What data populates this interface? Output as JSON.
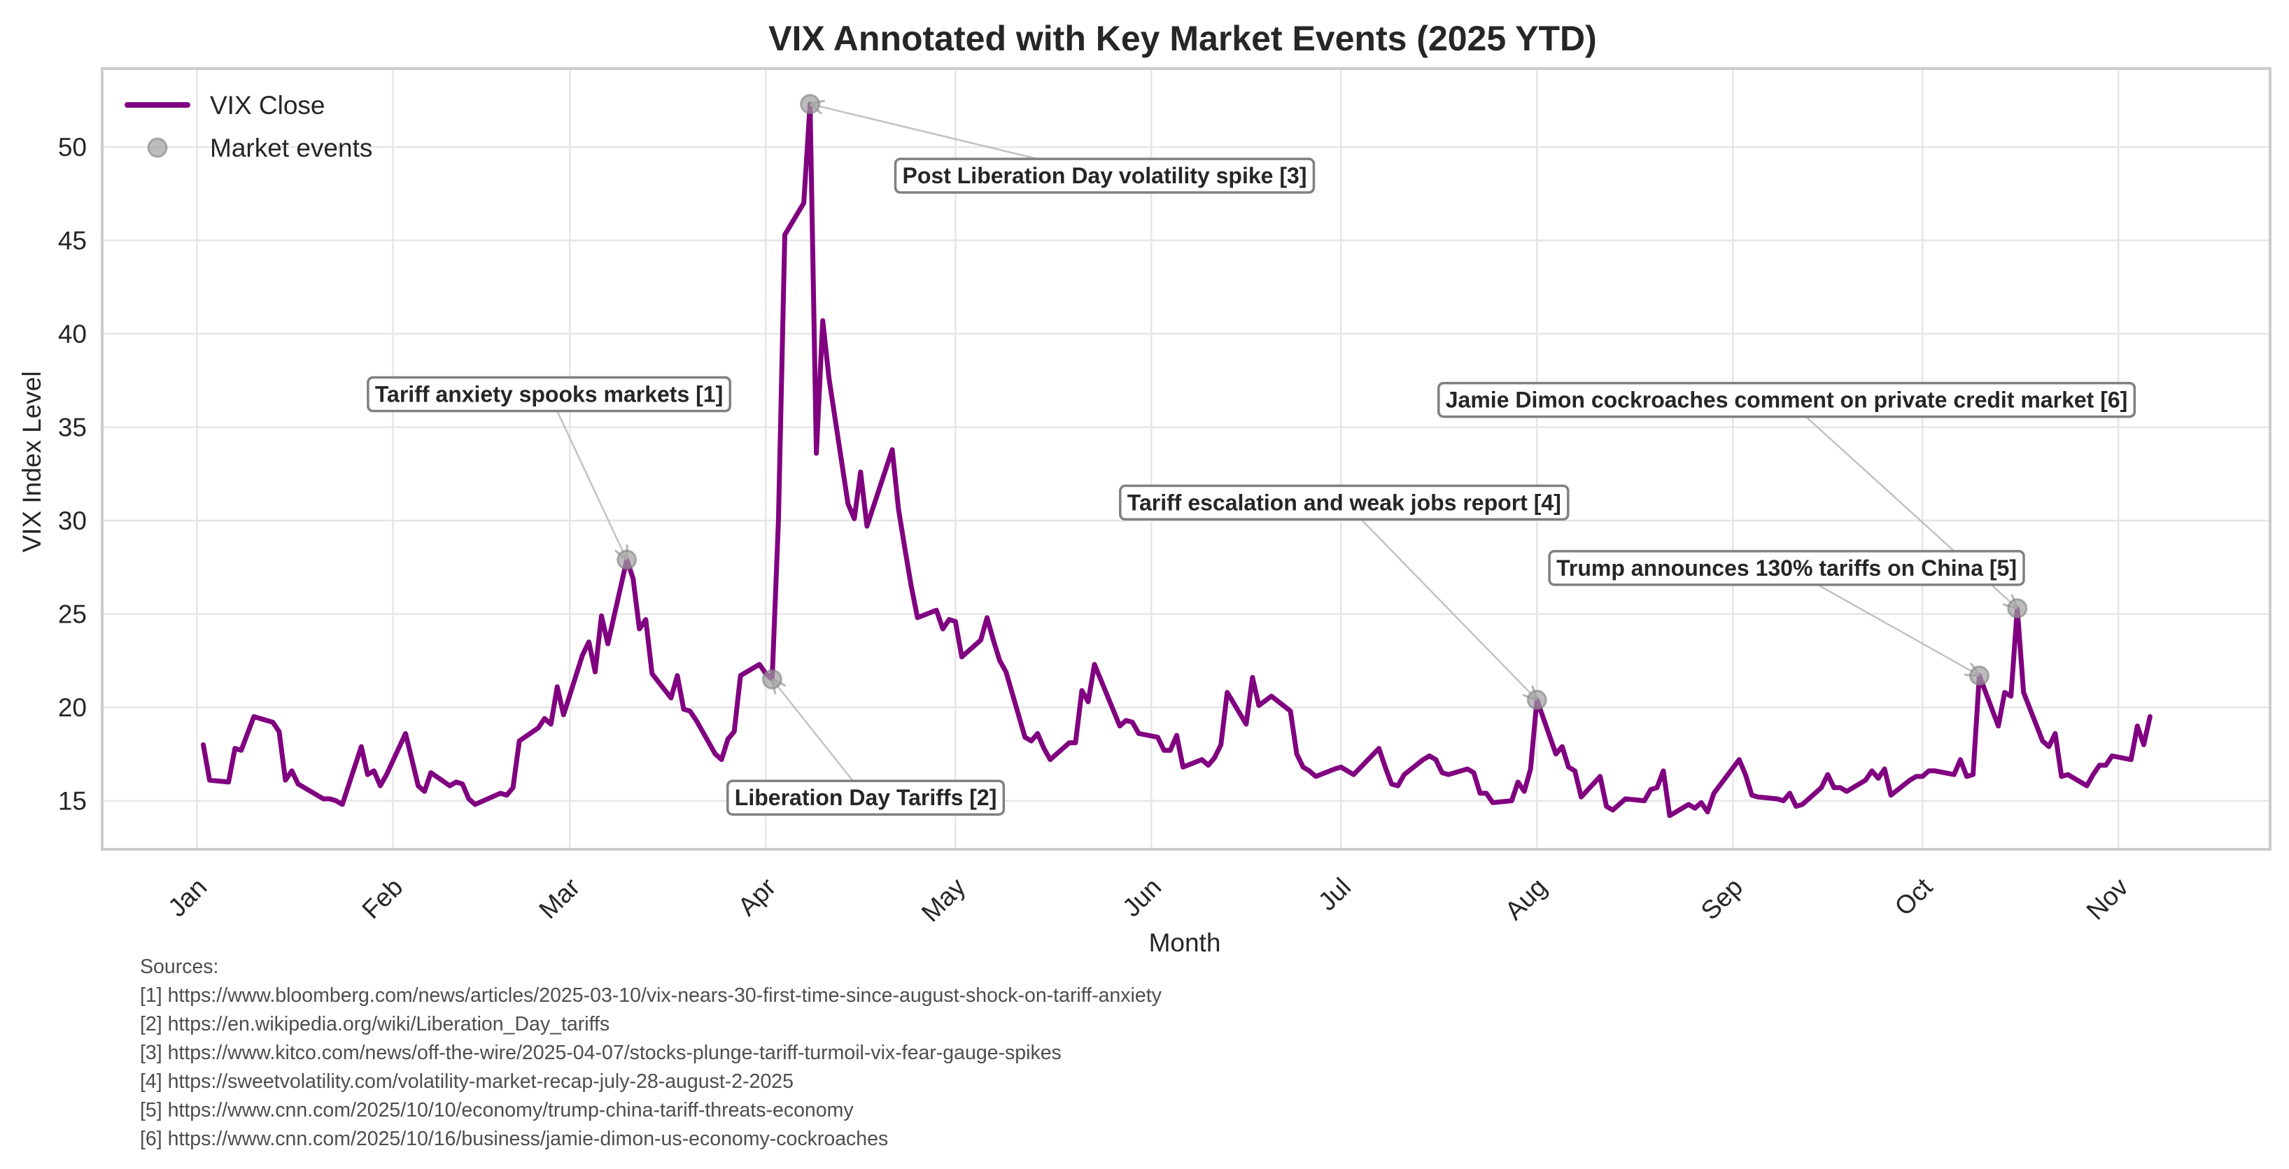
{
  "chart_data": {
    "type": "line",
    "title": "VIX Annotated with Key Market Events (2025 YTD)",
    "xlabel": "Month",
    "ylabel": "VIX Index Level",
    "ylim": [
      12.4,
      54.2
    ],
    "xlim": [
      "2024-12-17",
      "2025-11-25"
    ],
    "grid": true,
    "legend_position": "top-left",
    "legend": [
      {
        "label": "VIX Close",
        "kind": "line",
        "color": "#800080"
      },
      {
        "label": "Market events",
        "kind": "marker",
        "color": "#a0a0a0"
      }
    ],
    "x_ticks": [
      {
        "date": "2025-01-01",
        "label": "Jan"
      },
      {
        "date": "2025-02-01",
        "label": "Feb"
      },
      {
        "date": "2025-03-01",
        "label": "Mar"
      },
      {
        "date": "2025-04-01",
        "label": "Apr"
      },
      {
        "date": "2025-05-01",
        "label": "May"
      },
      {
        "date": "2025-06-01",
        "label": "Jun"
      },
      {
        "date": "2025-07-01",
        "label": "Jul"
      },
      {
        "date": "2025-08-01",
        "label": "Aug"
      },
      {
        "date": "2025-09-01",
        "label": "Sep"
      },
      {
        "date": "2025-10-01",
        "label": "Oct"
      },
      {
        "date": "2025-11-01",
        "label": "Nov"
      }
    ],
    "y_ticks": [
      15,
      20,
      25,
      30,
      35,
      40,
      45,
      50
    ],
    "series": [
      {
        "name": "VIX Close",
        "color": "#800080",
        "x": [
          "2025-01-02",
          "2025-01-03",
          "2025-01-06",
          "2025-01-07",
          "2025-01-08",
          "2025-01-10",
          "2025-01-13",
          "2025-01-14",
          "2025-01-15",
          "2025-01-16",
          "2025-01-17",
          "2025-01-21",
          "2025-01-22",
          "2025-01-23",
          "2025-01-24",
          "2025-01-27",
          "2025-01-28",
          "2025-01-29",
          "2025-01-30",
          "2025-01-31",
          "2025-02-03",
          "2025-02-04",
          "2025-02-05",
          "2025-02-06",
          "2025-02-07",
          "2025-02-10",
          "2025-02-11",
          "2025-02-12",
          "2025-02-13",
          "2025-02-14",
          "2025-02-18",
          "2025-02-19",
          "2025-02-20",
          "2025-02-21",
          "2025-02-24",
          "2025-02-25",
          "2025-02-26",
          "2025-02-27",
          "2025-02-28",
          "2025-03-03",
          "2025-03-04",
          "2025-03-05",
          "2025-03-06",
          "2025-03-07",
          "2025-03-10",
          "2025-03-11",
          "2025-03-12",
          "2025-03-13",
          "2025-03-14",
          "2025-03-17",
          "2025-03-18",
          "2025-03-19",
          "2025-03-20",
          "2025-03-21",
          "2025-03-24",
          "2025-03-25",
          "2025-03-26",
          "2025-03-27",
          "2025-03-28",
          "2025-03-31",
          "2025-04-01",
          "2025-04-02",
          "2025-04-03",
          "2025-04-04",
          "2025-04-07",
          "2025-04-08",
          "2025-04-09",
          "2025-04-10",
          "2025-04-11",
          "2025-04-14",
          "2025-04-15",
          "2025-04-16",
          "2025-04-17",
          "2025-04-21",
          "2025-04-22",
          "2025-04-23",
          "2025-04-24",
          "2025-04-25",
          "2025-04-28",
          "2025-04-29",
          "2025-04-30",
          "2025-05-01",
          "2025-05-02",
          "2025-05-05",
          "2025-05-06",
          "2025-05-07",
          "2025-05-08",
          "2025-05-09",
          "2025-05-12",
          "2025-05-13",
          "2025-05-14",
          "2025-05-15",
          "2025-05-16",
          "2025-05-19",
          "2025-05-20",
          "2025-05-21",
          "2025-05-22",
          "2025-05-23",
          "2025-05-27",
          "2025-05-28",
          "2025-05-29",
          "2025-05-30",
          "2025-06-02",
          "2025-06-03",
          "2025-06-04",
          "2025-06-05",
          "2025-06-06",
          "2025-06-09",
          "2025-06-10",
          "2025-06-11",
          "2025-06-12",
          "2025-06-13",
          "2025-06-16",
          "2025-06-17",
          "2025-06-18",
          "2025-06-20",
          "2025-06-23",
          "2025-06-24",
          "2025-06-25",
          "2025-06-26",
          "2025-06-27",
          "2025-06-30",
          "2025-07-01",
          "2025-07-02",
          "2025-07-03",
          "2025-07-07",
          "2025-07-08",
          "2025-07-09",
          "2025-07-10",
          "2025-07-11",
          "2025-07-14",
          "2025-07-15",
          "2025-07-16",
          "2025-07-17",
          "2025-07-18",
          "2025-07-21",
          "2025-07-22",
          "2025-07-23",
          "2025-07-24",
          "2025-07-25",
          "2025-07-28",
          "2025-07-29",
          "2025-07-30",
          "2025-07-31",
          "2025-08-01",
          "2025-08-04",
          "2025-08-05",
          "2025-08-06",
          "2025-08-07",
          "2025-08-08",
          "2025-08-11",
          "2025-08-12",
          "2025-08-13",
          "2025-08-14",
          "2025-08-15",
          "2025-08-18",
          "2025-08-19",
          "2025-08-20",
          "2025-08-21",
          "2025-08-22",
          "2025-08-25",
          "2025-08-26",
          "2025-08-27",
          "2025-08-28",
          "2025-08-29",
          "2025-09-02",
          "2025-09-03",
          "2025-09-04",
          "2025-09-05",
          "2025-09-08",
          "2025-09-09",
          "2025-09-10",
          "2025-09-11",
          "2025-09-12",
          "2025-09-15",
          "2025-09-16",
          "2025-09-17",
          "2025-09-18",
          "2025-09-19",
          "2025-09-22",
          "2025-09-23",
          "2025-09-24",
          "2025-09-25",
          "2025-09-26",
          "2025-09-29",
          "2025-09-30",
          "2025-10-01",
          "2025-10-02",
          "2025-10-03",
          "2025-10-06",
          "2025-10-07",
          "2025-10-08",
          "2025-10-09",
          "2025-10-10",
          "2025-10-13",
          "2025-10-14",
          "2025-10-15",
          "2025-10-16",
          "2025-10-17",
          "2025-10-20",
          "2025-10-21",
          "2025-10-22",
          "2025-10-23",
          "2025-10-24",
          "2025-10-27",
          "2025-10-28",
          "2025-10-29",
          "2025-10-30",
          "2025-10-31",
          "2025-11-03",
          "2025-11-04",
          "2025-11-05",
          "2025-11-06"
        ],
        "values": [
          18.0,
          16.1,
          16.0,
          17.8,
          17.7,
          19.5,
          19.2,
          18.7,
          16.1,
          16.6,
          15.9,
          15.1,
          15.1,
          15.0,
          14.8,
          17.9,
          16.4,
          16.6,
          15.8,
          16.4,
          18.6,
          17.2,
          15.8,
          15.5,
          16.5,
          15.8,
          16.0,
          15.9,
          15.1,
          14.8,
          15.4,
          15.3,
          15.7,
          18.2,
          18.9,
          19.4,
          19.1,
          21.1,
          19.6,
          22.8,
          23.5,
          21.9,
          24.9,
          23.4,
          27.9,
          26.9,
          24.2,
          24.7,
          21.8,
          20.5,
          21.7,
          19.9,
          19.8,
          19.3,
          17.5,
          17.2,
          18.3,
          18.7,
          21.7,
          22.3,
          21.8,
          21.5,
          30.0,
          45.3,
          47.0,
          52.3,
          33.6,
          40.7,
          37.6,
          30.9,
          30.1,
          32.6,
          29.7,
          33.8,
          30.6,
          28.5,
          26.5,
          24.8,
          25.2,
          24.2,
          24.7,
          24.6,
          22.7,
          23.6,
          24.8,
          23.6,
          22.5,
          21.9,
          18.4,
          18.2,
          18.6,
          17.8,
          17.2,
          18.1,
          18.1,
          20.9,
          20.3,
          22.3,
          19.0,
          19.3,
          19.2,
          18.6,
          18.4,
          17.7,
          17.7,
          18.5,
          16.8,
          17.2,
          16.9,
          17.3,
          18.0,
          20.8,
          19.1,
          21.6,
          20.1,
          20.6,
          19.8,
          17.5,
          16.8,
          16.6,
          16.3,
          16.7,
          16.8,
          16.6,
          16.4,
          17.8,
          16.8,
          15.9,
          15.8,
          16.4,
          17.2,
          17.4,
          17.2,
          16.5,
          16.4,
          16.7,
          16.5,
          15.4,
          15.4,
          14.9,
          15.0,
          16.0,
          15.5,
          16.7,
          20.4,
          17.5,
          17.9,
          16.8,
          16.6,
          15.2,
          16.3,
          14.7,
          14.5,
          14.8,
          15.1,
          15.0,
          15.6,
          15.7,
          16.6,
          14.2,
          14.8,
          14.6,
          14.9,
          14.4,
          15.4,
          17.2,
          16.4,
          15.3,
          15.2,
          15.1,
          15.0,
          15.4,
          14.7,
          14.8,
          15.7,
          16.4,
          15.7,
          15.7,
          15.5,
          16.1,
          16.6,
          16.2,
          16.7,
          15.3,
          16.1,
          16.3,
          16.3,
          16.6,
          16.6,
          16.4,
          17.2,
          16.3,
          16.4,
          21.7,
          19.0,
          20.8,
          20.6,
          25.3,
          20.8,
          18.2,
          17.9,
          18.6,
          16.3,
          16.4,
          15.8,
          16.4,
          16.9,
          16.9,
          17.4,
          17.2,
          19.0,
          18.0,
          19.5
        ]
      }
    ],
    "events": [
      {
        "id": 1,
        "date": "2025-03-10",
        "value": 27.9,
        "label": "Tariff anxiety spooks markets [1]"
      },
      {
        "id": 2,
        "date": "2025-04-02",
        "value": 21.5,
        "label": "Liberation Day Tariffs [2]"
      },
      {
        "id": 3,
        "date": "2025-04-08",
        "value": 52.3,
        "label": "Post Liberation Day volatility spike [3]"
      },
      {
        "id": 4,
        "date": "2025-08-01",
        "value": 20.4,
        "label": "Tariff escalation and weak jobs report [4]"
      },
      {
        "id": 5,
        "date": "2025-10-10",
        "value": 21.7,
        "label": "Trump announces 130% tariffs on China [5]"
      },
      {
        "id": 6,
        "date": "2025-10-16",
        "value": 25.3,
        "label": "Jamie Dimon cockroaches comment on private credit market [6]"
      }
    ]
  },
  "sources": {
    "heading": "Sources:",
    "items": [
      "[1] https://www.bloomberg.com/news/articles/2025-03-10/vix-nears-30-first-time-since-august-shock-on-tariff-anxiety",
      "[2] https://en.wikipedia.org/wiki/Liberation_Day_tariffs",
      "[3] https://www.kitco.com/news/off-the-wire/2025-04-07/stocks-plunge-tariff-turmoil-vix-fear-gauge-spikes",
      "[4] https://sweetvolatility.com/volatility-market-recap-july-28-august-2-2025",
      "[5] https://www.cnn.com/2025/10/10/economy/trump-china-tariff-threats-economy",
      "[6] https://www.cnn.com/2025/10/16/business/jamie-dimon-us-economy-cockroaches"
    ]
  }
}
